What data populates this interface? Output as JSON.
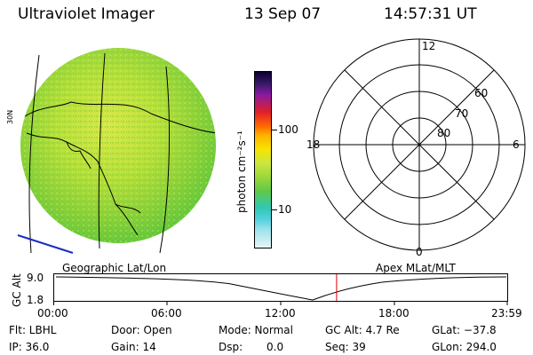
{
  "header": {
    "instrument": "Ultraviolet Imager",
    "date": "13 Sep 07",
    "time": "14:57:31 UT"
  },
  "colorbar": {
    "label": "photon cm⁻²s⁻¹",
    "ticks": [
      "100",
      "10"
    ]
  },
  "polar_plot": {
    "mlt_labels": [
      "12",
      "18",
      "6",
      "0"
    ],
    "lat_labels": [
      "60",
      "70",
      "80"
    ]
  },
  "image_panel": {
    "partial_label": "30N"
  },
  "timeline": {
    "left_caption": "Geographic Lat/Lon",
    "right_caption": "Apex MLat/MLT",
    "axis_title": "GC Alt",
    "y_ticks": [
      "9.0",
      "1.8"
    ],
    "x_ticks": [
      "00:00",
      "06:00",
      "12:00",
      "18:00",
      "23:59"
    ],
    "marker_time": "14:57:31",
    "series_color": "#000000",
    "marker_color": "#e00000"
  },
  "status": {
    "flt": "Flt: LBHL",
    "ip": "IP: 36.0",
    "door": "Door: Open",
    "gain": "Gain: 14",
    "mode": "Mode: Normal",
    "dsp_label": "Dsp:",
    "dsp_value": "0.0",
    "gc_alt": "GC Alt: 4.7 Re",
    "seq": "Seq: 39",
    "glat": "GLat: −37.8",
    "glon": "GLon: 294.0"
  }
}
